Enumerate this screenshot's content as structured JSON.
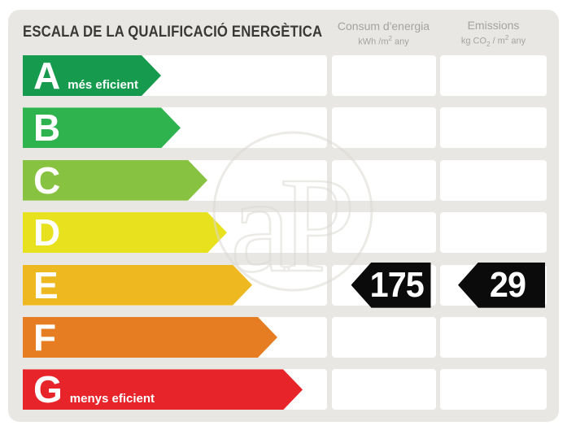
{
  "title": "ESCALA DE LA QUALIFICACIÓ ENERGÈTICA",
  "columns": {
    "consum": {
      "title": "Consum d'energia",
      "unit": {
        "pre": "kWh /m",
        "sup": "2",
        "post": " any"
      }
    },
    "emissions": {
      "title": "Emissions",
      "unit": {
        "pre": "kg CO",
        "sub": "2",
        "mid": " / m",
        "sup": "2",
        "post": " any"
      }
    }
  },
  "scale": {
    "rows": [
      {
        "letter": "A",
        "label": "més eficient",
        "color": "#169a4d",
        "arrow_width": 170
      },
      {
        "letter": "B",
        "label": "",
        "color": "#2fb34f",
        "arrow_width": 194
      },
      {
        "letter": "C",
        "label": "",
        "color": "#87c341",
        "arrow_width": 227
      },
      {
        "letter": "D",
        "label": "",
        "color": "#e7e11e",
        "arrow_width": 251
      },
      {
        "letter": "E",
        "label": "",
        "color": "#eeb820",
        "arrow_width": 282
      },
      {
        "letter": "F",
        "label": "",
        "color": "#e67d22",
        "arrow_width": 313
      },
      {
        "letter": "G",
        "label": "menys eficient",
        "color": "#e6242a",
        "arrow_width": 344
      }
    ]
  },
  "rating": {
    "letter": "E",
    "consum": "175",
    "emissions": "29"
  },
  "watermark": {
    "text": "aP"
  },
  "colors": {
    "panel_background": "#e8e7e4",
    "cell_background": "#ffffff",
    "badge_background": "#0b0b0b",
    "header_text": "#a5a3a1",
    "title_text": "#3a3937"
  },
  "chart_data": {
    "type": "bar",
    "title": "ESCALA DE LA QUALIFICACIÓ ENERGÈTICA",
    "categories": [
      "A",
      "B",
      "C",
      "D",
      "E",
      "F",
      "G"
    ],
    "category_colors": [
      "#169a4d",
      "#2fb34f",
      "#87c341",
      "#e7e11e",
      "#eeb820",
      "#e67d22",
      "#e6242a"
    ],
    "annotations": [
      "A = més eficient",
      "G = menys eficient"
    ],
    "assigned_rating": "E",
    "series": [
      {
        "name": "Consum d'energia (kWh/m2 any)",
        "values": [
          null,
          null,
          null,
          null,
          175,
          null,
          null
        ]
      },
      {
        "name": "Emissions (kg CO2/m2 any)",
        "values": [
          null,
          null,
          null,
          null,
          29,
          null,
          null
        ]
      }
    ],
    "legend_position": "top",
    "grid": false
  }
}
